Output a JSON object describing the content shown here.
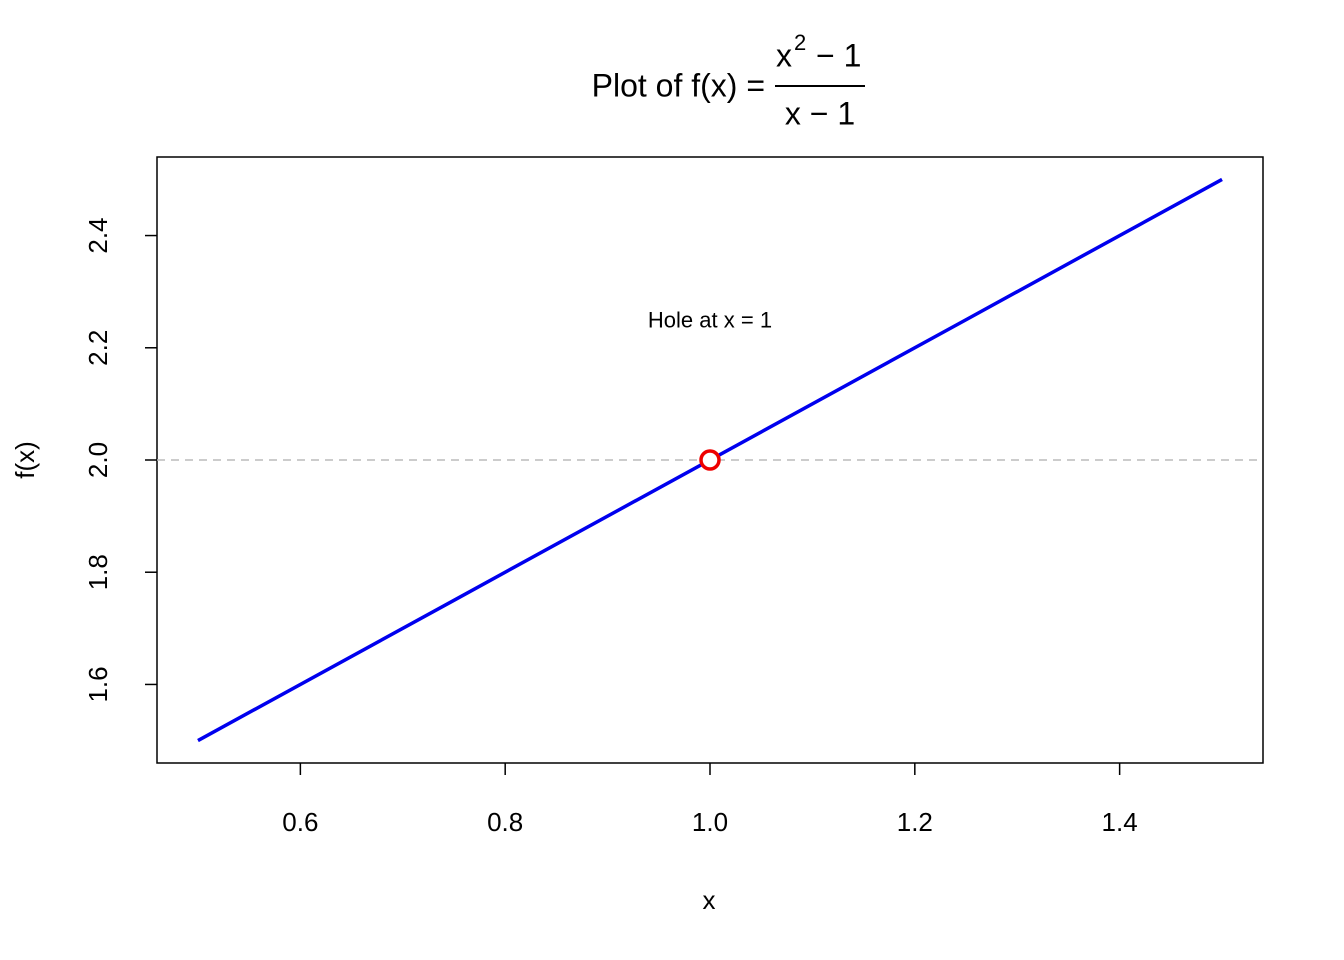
{
  "chart_data": {
    "type": "line",
    "title": {
      "text": "Plot of f(x) =",
      "numerator_base": "x",
      "numerator_exponent": "2",
      "numerator_rest": "− 1",
      "denominator": "x − 1"
    },
    "x_label": "x",
    "y_label": "f(x)",
    "series": [
      {
        "x": [
          0.5,
          0.75,
          1.25,
          1.5
        ],
        "values": [
          1.5,
          1.75,
          2.25,
          2.5
        ],
        "color": "#0000ee"
      }
    ],
    "hole": {
      "x": 1,
      "y": 2,
      "color": "#ee0000"
    },
    "hline": {
      "value": 2,
      "color": "#bbbbbb"
    },
    "annotation": {
      "text": "Hole at x = 1",
      "x": 1,
      "y": 2.25
    },
    "xlim": [
      0.46,
      1.54
    ],
    "ylim": [
      1.46,
      2.54
    ],
    "xticks": [
      0.6,
      0.8,
      {
        "value": 1,
        "label": "1.0"
      },
      1.2,
      1.4
    ],
    "yticks": [
      1.6,
      1.8,
      {
        "value": 2,
        "label": "2.0"
      },
      2.2,
      2.4
    ]
  }
}
